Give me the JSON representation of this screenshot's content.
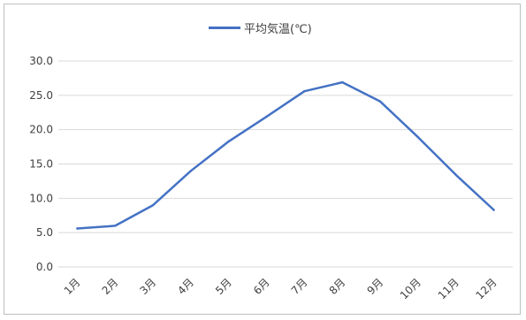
{
  "chart_data": {
    "type": "line",
    "title": "",
    "xlabel": "",
    "ylabel": "",
    "categories": [
      "1月",
      "2月",
      "3月",
      "4月",
      "5月",
      "6月",
      "7月",
      "8月",
      "9月",
      "10月",
      "11月",
      "12月"
    ],
    "series": [
      {
        "name": "平均気温(℃)",
        "values": [
          5.6,
          6.0,
          9.0,
          14.0,
          18.3,
          21.9,
          25.6,
          26.9,
          24.1,
          18.9,
          13.4,
          8.3
        ]
      }
    ],
    "ylim": [
      0,
      30
    ],
    "yticks": [
      "0.0",
      "5.0",
      "10.0",
      "15.0",
      "20.0",
      "25.0",
      "30.0"
    ],
    "grid": true,
    "legend_position": "top-center",
    "colors": {
      "series": "#4472c4",
      "grid": "#d9d9d9",
      "text": "#404040"
    }
  }
}
